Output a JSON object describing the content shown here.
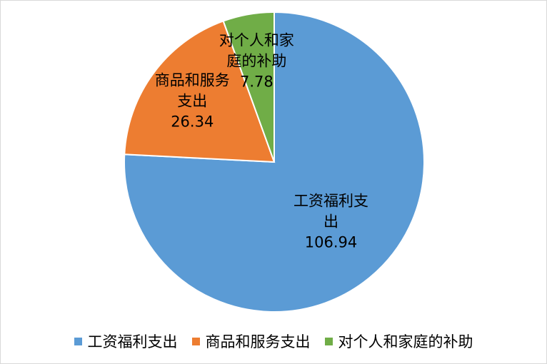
{
  "chart_data": {
    "type": "pie",
    "categories": [
      "工资福利支出",
      "商品和服务支出",
      "对个人和家庭的补助"
    ],
    "values": [
      106.94,
      26.34,
      7.78
    ],
    "colors": [
      "#5b9bd5",
      "#ed7d31",
      "#70ad47"
    ],
    "legend": "bottom"
  }
}
